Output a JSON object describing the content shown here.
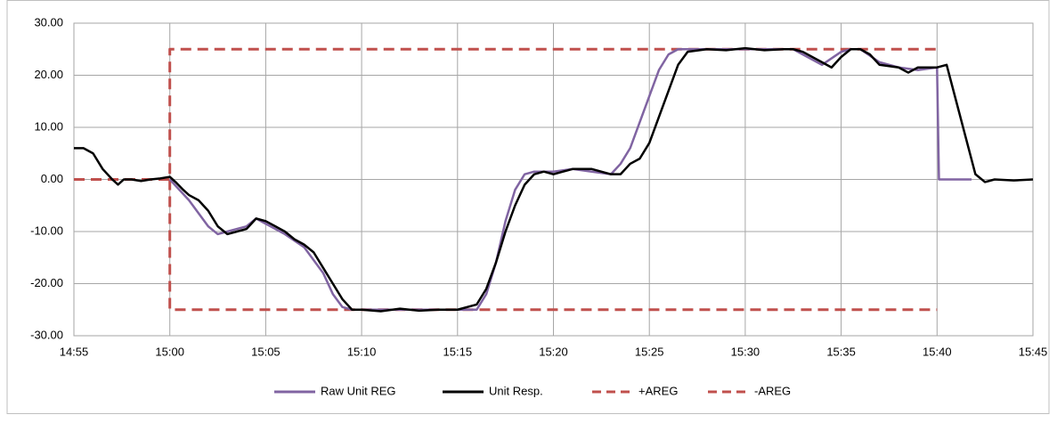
{
  "chart_data": {
    "type": "line",
    "xlim": [
      895,
      945
    ],
    "xticks": [
      {
        "value": 895,
        "label": "14:55"
      },
      {
        "value": 900,
        "label": "15:00"
      },
      {
        "value": 905,
        "label": "15:05"
      },
      {
        "value": 910,
        "label": "15:10"
      },
      {
        "value": 915,
        "label": "15:15"
      },
      {
        "value": 920,
        "label": "15:20"
      },
      {
        "value": 925,
        "label": "15:25"
      },
      {
        "value": 930,
        "label": "15:30"
      },
      {
        "value": 935,
        "label": "15:35"
      },
      {
        "value": 940,
        "label": "15:40"
      },
      {
        "value": 945,
        "label": "15:45"
      }
    ],
    "ylim": [
      -30,
      30
    ],
    "yticks": [
      {
        "value": 30,
        "label": "30.00"
      },
      {
        "value": 20,
        "label": "20.00"
      },
      {
        "value": 10,
        "label": "10.00"
      },
      {
        "value": 0,
        "label": "0.00"
      },
      {
        "value": -10,
        "label": "-10.00"
      },
      {
        "value": -20,
        "label": "-20.00"
      },
      {
        "value": -30,
        "label": "-30.00"
      }
    ],
    "grid": true,
    "legend": "bottom",
    "series": [
      {
        "name": "Raw Unit REG",
        "color": "#8064a2",
        "dash": false,
        "x": [
          900,
          901,
          902,
          902.5,
          903,
          904,
          904.5,
          905,
          906,
          907,
          908,
          908.5,
          909,
          909.5,
          916,
          916.5,
          917,
          917.5,
          918,
          918.5,
          919,
          920,
          921,
          922,
          923,
          923.5,
          924,
          924.5,
          925,
          925.5,
          926,
          926.5,
          932.5,
          933,
          934,
          935,
          935.5,
          936,
          937,
          938,
          939,
          940,
          940.1,
          941.8
        ],
        "values": [
          0,
          -4,
          -9,
          -10.5,
          -10,
          -9,
          -7.5,
          -8.5,
          -10.5,
          -13,
          -18,
          -22,
          -24.5,
          -25,
          -25,
          -22,
          -16,
          -8,
          -2,
          1,
          1.5,
          1.5,
          2,
          1.5,
          1,
          3,
          6,
          11,
          16,
          21,
          24,
          25,
          25,
          24,
          22,
          24.5,
          25,
          25,
          22.5,
          21.5,
          21,
          21.5,
          0,
          0
        ]
      },
      {
        "name": "Unit Resp.",
        "color": "#000000",
        "dash": false,
        "x": [
          895,
          895.5,
          896,
          896.5,
          897,
          897.3,
          897.6,
          898,
          898.5,
          899,
          899.5,
          900,
          900.3,
          900.7,
          901,
          901.5,
          902,
          902.5,
          903,
          903.5,
          904,
          904.5,
          905,
          905.5,
          906,
          906.5,
          907,
          907.5,
          908,
          908.5,
          909,
          909.5,
          910,
          911,
          912,
          913,
          914,
          915,
          916,
          916.5,
          917,
          917.5,
          918,
          918.5,
          919,
          919.5,
          920,
          920.5,
          921,
          922,
          923,
          923.5,
          924,
          924.5,
          925,
          925.5,
          926,
          926.5,
          927,
          928,
          929,
          930,
          931,
          932,
          932.5,
          933,
          934,
          934.5,
          935,
          935.5,
          936,
          936.5,
          937,
          938,
          938.5,
          939,
          940,
          940.5,
          941,
          941.5,
          942,
          942.5,
          943,
          944,
          945
        ],
        "values": [
          6,
          6,
          5,
          2,
          0,
          -1,
          0,
          0,
          -0.3,
          0,
          0.2,
          0.5,
          -0.5,
          -2,
          -3,
          -4,
          -6,
          -9,
          -10.5,
          -10,
          -9.5,
          -7.5,
          -8,
          -9,
          -10,
          -11.5,
          -12.5,
          -14,
          -17,
          -20,
          -23,
          -25,
          -25,
          -25.3,
          -24.8,
          -25.2,
          -25,
          -25,
          -24,
          -21,
          -16,
          -10,
          -5,
          -1,
          1,
          1.5,
          1,
          1.5,
          2,
          2,
          1,
          1,
          3,
          4,
          7,
          12,
          17,
          22,
          24.5,
          25,
          24.8,
          25.2,
          24.8,
          25,
          25,
          24.5,
          22.5,
          21.5,
          23.5,
          25,
          25,
          24,
          22,
          21.5,
          20.5,
          21.5,
          21.5,
          22,
          15,
          8,
          1,
          -0.5,
          0,
          -0.2,
          0
        ]
      },
      {
        "name": "+AREG",
        "color": "#c0504d",
        "dash": true,
        "x": [
          895,
          900,
          900,
          940
        ],
        "values": [
          0,
          0,
          25,
          25
        ]
      },
      {
        "name": "-AREG",
        "color": "#c0504d",
        "dash": true,
        "x": [
          900,
          900,
          940
        ],
        "values": [
          0,
          -25,
          -25
        ]
      }
    ]
  }
}
